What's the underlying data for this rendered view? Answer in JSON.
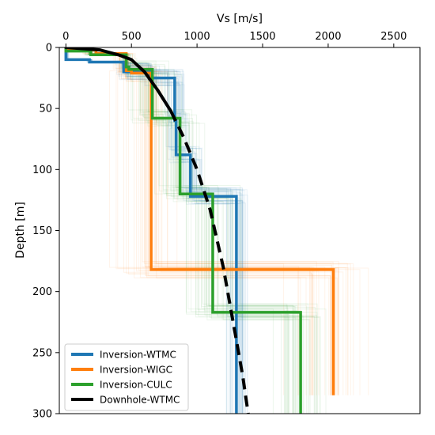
{
  "chart_data": {
    "type": "line",
    "xlabel": "Vs [m/s]",
    "ylabel": "Depth [m]",
    "xlim": [
      -50,
      2700
    ],
    "ylim": [
      300,
      0
    ],
    "x_axis_position": "top",
    "y_inverted": true,
    "grid": false,
    "legend_position": "lower-left",
    "xticks": [
      0,
      500,
      1000,
      1500,
      2000,
      2500
    ],
    "yticks": [
      0,
      50,
      100,
      150,
      200,
      250,
      300
    ],
    "series": [
      {
        "name": "Inversion-WTMC",
        "color": "#1f77b4",
        "style": "step",
        "profile": [
          [
            0,
            10
          ],
          [
            180,
            12
          ],
          [
            440,
            20
          ],
          [
            640,
            25
          ],
          [
            830,
            60
          ],
          [
            840,
            88
          ],
          [
            950,
            122
          ],
          [
            1300,
            300
          ]
        ],
        "ensemble": {
          "x_spread": 70,
          "start_depth": 20,
          "count": 40
        }
      },
      {
        "name": "Inversion-WIGC",
        "color": "#ff7f0e",
        "style": "step",
        "profile": [
          [
            0,
            2
          ],
          [
            230,
            5
          ],
          [
            460,
            19
          ],
          [
            500,
            21
          ],
          [
            650,
            182
          ],
          [
            2040,
            285
          ]
        ],
        "ensemble": {
          "x_spread": 300,
          "start_depth": 180,
          "count": 40
        }
      },
      {
        "name": "Inversion-CULC",
        "color": "#2ca02c",
        "style": "step",
        "profile": [
          [
            0,
            3
          ],
          [
            190,
            6
          ],
          [
            460,
            16
          ],
          [
            480,
            18
          ],
          [
            660,
            58
          ],
          [
            870,
            120
          ],
          [
            1120,
            217
          ],
          [
            1790,
            300
          ]
        ],
        "ensemble": {
          "x_spread": 170,
          "start_depth": 50,
          "count": 40
        }
      },
      {
        "name": "Downhole-WTMC",
        "color": "#000000",
        "style": "smooth",
        "points": [
          [
            0,
            0
          ],
          [
            260,
            2
          ],
          [
            400,
            6
          ],
          [
            500,
            10
          ],
          [
            600,
            20
          ],
          [
            700,
            35
          ],
          [
            800,
            52
          ],
          [
            900,
            74
          ],
          [
            1000,
            100
          ],
          [
            1100,
            133
          ],
          [
            1200,
            180
          ],
          [
            1300,
            240
          ],
          [
            1350,
            270
          ],
          [
            1390,
            300
          ]
        ],
        "solid_until_depth": 70
      }
    ]
  }
}
